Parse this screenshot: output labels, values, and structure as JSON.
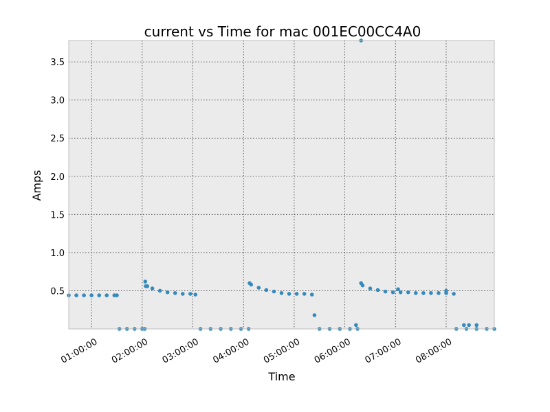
{
  "chart_data": {
    "type": "scatter",
    "title": "current vs Time for mac 001EC00CC4A0",
    "xlabel": "Time",
    "ylabel": "Amps",
    "x_range_hours": [
      0.55,
      8.95
    ],
    "ylim": [
      0.0,
      3.78
    ],
    "grid": true,
    "colors": {
      "plot_bg": "#ebebeb",
      "marker": "#348abd",
      "frame": "#bcbcbc"
    },
    "x_ticks": [
      {
        "value": 1,
        "label": "01:00:00"
      },
      {
        "value": 2,
        "label": "02:00:00"
      },
      {
        "value": 3,
        "label": "03:00:00"
      },
      {
        "value": 4,
        "label": "04:00:00"
      },
      {
        "value": 5,
        "label": "05:00:00"
      },
      {
        "value": 6,
        "label": "06:00:00"
      },
      {
        "value": 7,
        "label": "07:00:00"
      },
      {
        "value": 8,
        "label": "08:00:00"
      }
    ],
    "y_ticks": [
      {
        "value": 0.5,
        "label": "0.5"
      },
      {
        "value": 1.0,
        "label": "1.0"
      },
      {
        "value": 1.5,
        "label": "1.5"
      },
      {
        "value": 2.0,
        "label": "2.0"
      },
      {
        "value": 2.5,
        "label": "2.5"
      },
      {
        "value": 3.0,
        "label": "3.0"
      },
      {
        "value": 3.5,
        "label": "3.5"
      }
    ],
    "series": [
      {
        "x": [
          0.55,
          0.7,
          0.85,
          1.0,
          1.15,
          1.3,
          1.45,
          1.5,
          1.55,
          1.7,
          1.85,
          2.0,
          2.05,
          2.06,
          2.07,
          2.1,
          2.2,
          2.35,
          2.5,
          2.65,
          2.8,
          2.95,
          3.05,
          3.15,
          3.35,
          3.55,
          3.75,
          3.95,
          4.1,
          4.12,
          4.15,
          4.3,
          4.45,
          4.6,
          4.75,
          4.9,
          5.05,
          5.2,
          5.35,
          5.4,
          5.5,
          5.7,
          5.9,
          6.1,
          6.25,
          6.22,
          6.32,
          6.35,
          6.5,
          6.65,
          6.8,
          6.95,
          7.1,
          7.25,
          7.4,
          7.55,
          7.7,
          7.85,
          8.0,
          8.15,
          7.05,
          8.0,
          8.2,
          8.4,
          8.6,
          8.8,
          8.95,
          8.35,
          8.45,
          8.6,
          6.32
        ],
        "y": [
          0.44,
          0.44,
          0.44,
          0.44,
          0.44,
          0.44,
          0.44,
          0.44,
          0.0,
          0.0,
          0.0,
          0.0,
          0.0,
          0.62,
          0.56,
          0.56,
          0.53,
          0.5,
          0.48,
          0.47,
          0.46,
          0.46,
          0.45,
          0.0,
          0.0,
          0.0,
          0.0,
          0.0,
          0.0,
          0.6,
          0.58,
          0.54,
          0.51,
          0.49,
          0.47,
          0.46,
          0.46,
          0.46,
          0.45,
          0.18,
          0.0,
          0.0,
          0.0,
          0.0,
          0.0,
          0.05,
          0.6,
          0.57,
          0.53,
          0.51,
          0.49,
          0.48,
          0.48,
          0.48,
          0.47,
          0.47,
          0.47,
          0.47,
          0.47,
          0.46,
          0.52,
          0.5,
          0.0,
          0.0,
          0.0,
          0.0,
          0.0,
          0.05,
          0.05,
          0.05,
          3.78
        ]
      }
    ]
  }
}
